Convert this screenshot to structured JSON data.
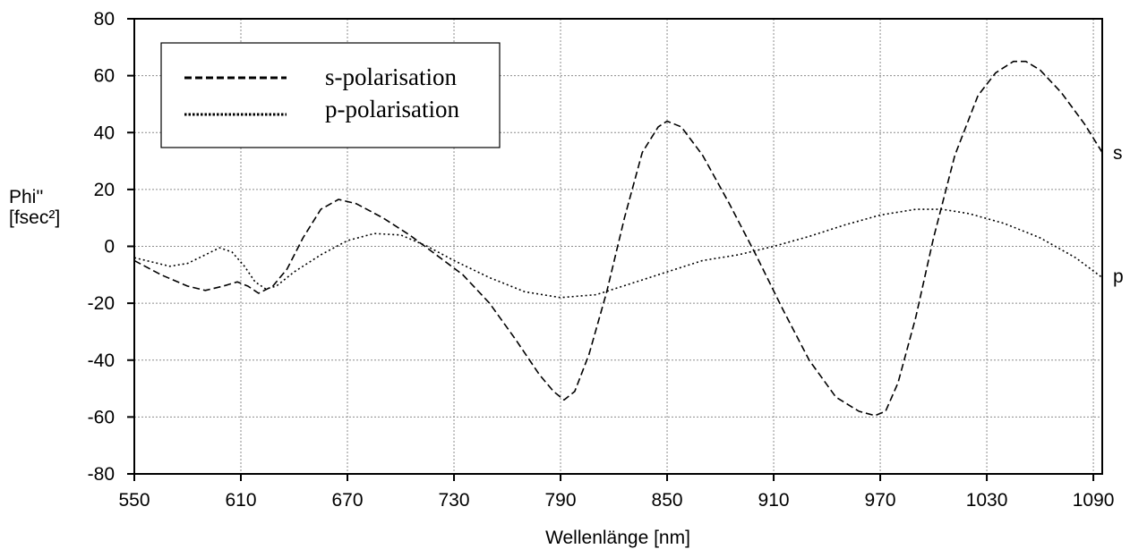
{
  "chart_data": {
    "type": "line",
    "xlabel": "Wellenlänge [nm]",
    "ylabel_line1": "Phi''",
    "ylabel_line2": "[fsec²]",
    "xlim": [
      550,
      1095
    ],
    "ylim": [
      -80,
      80
    ],
    "xticks": [
      550,
      610,
      670,
      730,
      790,
      850,
      910,
      970,
      1030,
      1090
    ],
    "yticks": [
      80,
      60,
      40,
      20,
      0,
      -20,
      -40,
      -60,
      -80
    ],
    "grid": true,
    "legend_position": "top-left",
    "series": [
      {
        "name": "s-polarisation",
        "end_label": "s",
        "style": "dashed",
        "color": "#000000",
        "x": [
          550,
          565,
          580,
          590,
          600,
          608,
          614,
          620,
          628,
          636,
          645,
          655,
          665,
          675,
          690,
          705,
          720,
          735,
          750,
          765,
          778,
          786,
          792,
          798,
          806,
          816,
          826,
          836,
          845,
          850,
          858,
          870,
          885,
          900,
          915,
          930,
          945,
          958,
          967,
          973,
          980,
          990,
          1000,
          1012,
          1025,
          1035,
          1045,
          1052,
          1060,
          1072,
          1085,
          1095
        ],
        "y": [
          -5,
          -10,
          -14,
          -15.5,
          -14,
          -12.5,
          -14,
          -16.5,
          -14,
          -8,
          3,
          13,
          16.5,
          15,
          10,
          4,
          -3,
          -10,
          -20,
          -33,
          -45,
          -51,
          -54,
          -51,
          -38,
          -16,
          10,
          33,
          42,
          44,
          42,
          32,
          15,
          -3,
          -22,
          -40,
          -53,
          -58,
          -59.5,
          -58,
          -48,
          -25,
          3,
          32,
          53,
          61,
          65,
          65,
          62,
          54,
          43,
          33
        ]
      },
      {
        "name": "p-polarisation",
        "end_label": "p",
        "style": "dotted",
        "color": "#000000",
        "x": [
          550,
          560,
          570,
          580,
          590,
          598,
          605,
          612,
          618,
          624,
          630,
          640,
          655,
          670,
          685,
          700,
          715,
          730,
          750,
          770,
          790,
          810,
          830,
          850,
          870,
          890,
          910,
          930,
          950,
          970,
          990,
          1005,
          1020,
          1040,
          1060,
          1080,
          1095
        ],
        "y": [
          -4,
          -5.5,
          -7,
          -6,
          -3,
          -0.5,
          -2,
          -7,
          -12.5,
          -15,
          -14,
          -9,
          -3,
          2,
          4.5,
          4,
          0,
          -5,
          -11,
          -16,
          -18,
          -17,
          -13,
          -9,
          -5,
          -3,
          0,
          3.5,
          7.5,
          11,
          13,
          13,
          11.5,
          8,
          3,
          -4,
          -11
        ]
      }
    ]
  }
}
